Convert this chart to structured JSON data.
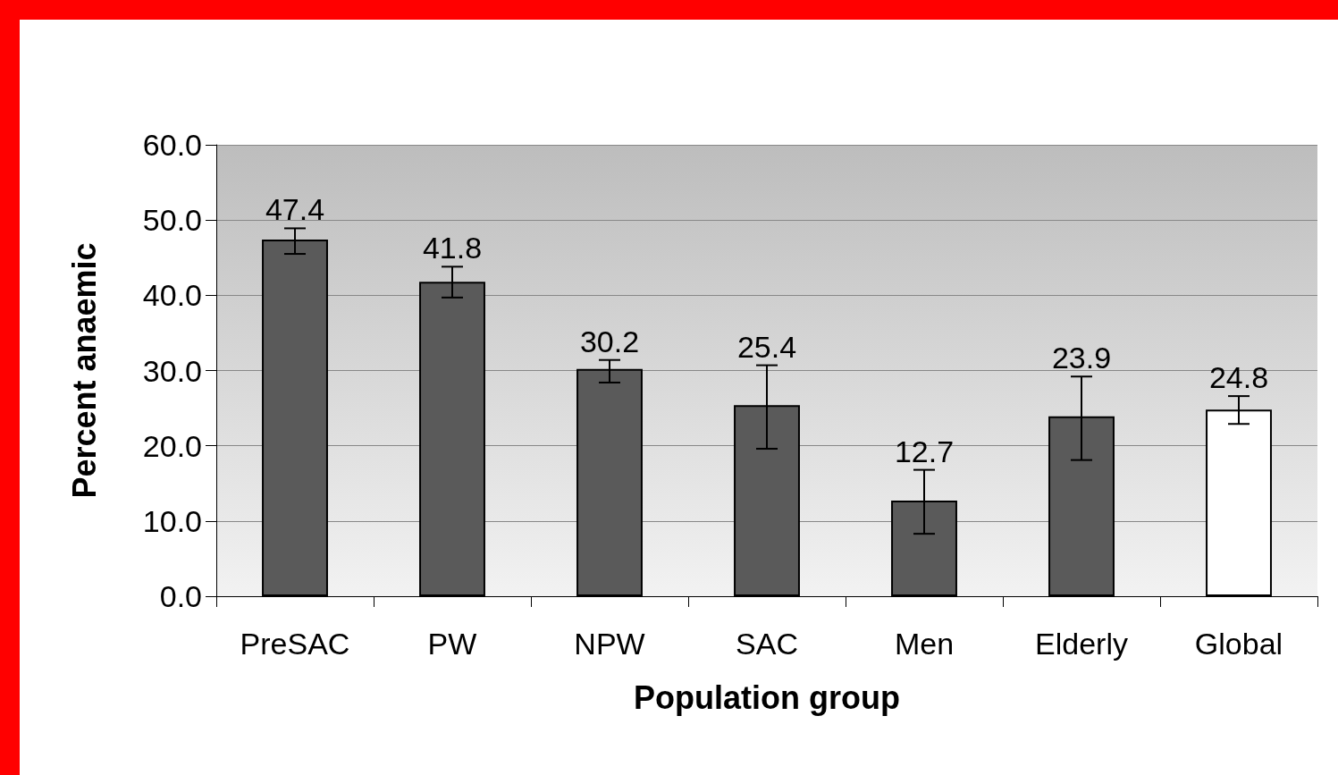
{
  "chart_data": {
    "type": "bar",
    "xlabel": "Population group",
    "ylabel": "Percent anaemic",
    "categories": [
      "PreSAC",
      "PW",
      "NPW",
      "SAC",
      "Men",
      "Elderly",
      "Global"
    ],
    "values": [
      47.4,
      41.8,
      30.2,
      25.4,
      12.7,
      23.9,
      24.8
    ],
    "colors": [
      "#5a5a5a",
      "#5a5a5a",
      "#5a5a5a",
      "#5a5a5a",
      "#5a5a5a",
      "#5a5a5a",
      "#ffffff"
    ],
    "errors": [
      [
        45.5,
        48.9
      ],
      [
        39.7,
        43.8
      ],
      [
        28.4,
        31.4
      ],
      [
        19.6,
        30.7
      ],
      [
        8.3,
        16.8
      ],
      [
        18.1,
        29.2
      ],
      [
        22.9,
        26.6
      ]
    ],
    "ylim": [
      0,
      60
    ],
    "yticks": [
      {
        "value": 0,
        "label": "0.0"
      },
      {
        "value": 10,
        "label": "10.0"
      },
      {
        "value": 20,
        "label": "20.0"
      },
      {
        "value": 30,
        "label": "30.0"
      },
      {
        "value": 40,
        "label": "40.0"
      },
      {
        "value": 50,
        "label": "50.0"
      },
      {
        "value": 60,
        "label": "60.0"
      }
    ],
    "grid": "y",
    "data_labels": true
  }
}
